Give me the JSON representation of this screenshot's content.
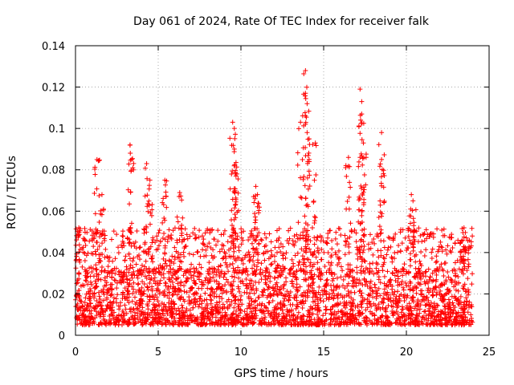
{
  "chart_data": {
    "type": "scatter",
    "title": "Day 061 of 2024, Rate Of TEC Index for receiver falk",
    "xlabel": "GPS time / hours",
    "ylabel": "ROTI / TECUs",
    "xlim": [
      0,
      25
    ],
    "ylim": [
      0,
      0.14
    ],
    "xticks": [
      0,
      5,
      10,
      15,
      20,
      25
    ],
    "xtick_labels": [
      "0",
      "5",
      "10",
      "15",
      "20",
      "25"
    ],
    "yticks": [
      0,
      0.02,
      0.04,
      0.06,
      0.08,
      0.1,
      0.12,
      0.14
    ],
    "ytick_labels": [
      "0",
      "0.02",
      "0.04",
      "0.06",
      "0.08",
      "0.1",
      "0.12",
      "0.14"
    ],
    "grid": true,
    "marker": "+",
    "color": "#ff0000",
    "x_data_range": [
      0,
      24
    ],
    "baseline_band": [
      0.005,
      0.03
    ],
    "notable_points": [
      {
        "x": 0.2,
        "y": 0.052
      },
      {
        "x": 1.3,
        "y": 0.085
      },
      {
        "x": 1.6,
        "y": 0.068
      },
      {
        "x": 3.3,
        "y": 0.092
      },
      {
        "x": 3.4,
        "y": 0.085
      },
      {
        "x": 4.3,
        "y": 0.083
      },
      {
        "x": 4.5,
        "y": 0.075
      },
      {
        "x": 5.4,
        "y": 0.075
      },
      {
        "x": 6.3,
        "y": 0.069
      },
      {
        "x": 9.5,
        "y": 0.103
      },
      {
        "x": 9.6,
        "y": 0.1
      },
      {
        "x": 9.6,
        "y": 0.09
      },
      {
        "x": 9.7,
        "y": 0.077
      },
      {
        "x": 10.9,
        "y": 0.072
      },
      {
        "x": 11.0,
        "y": 0.068
      },
      {
        "x": 13.6,
        "y": 0.103
      },
      {
        "x": 13.9,
        "y": 0.128
      },
      {
        "x": 13.9,
        "y": 0.117
      },
      {
        "x": 14.0,
        "y": 0.112
      },
      {
        "x": 14.0,
        "y": 0.098
      },
      {
        "x": 14.5,
        "y": 0.093
      },
      {
        "x": 16.5,
        "y": 0.086
      },
      {
        "x": 17.2,
        "y": 0.119
      },
      {
        "x": 17.3,
        "y": 0.113
      },
      {
        "x": 17.3,
        "y": 0.107
      },
      {
        "x": 17.4,
        "y": 0.093
      },
      {
        "x": 18.5,
        "y": 0.098
      },
      {
        "x": 18.5,
        "y": 0.085
      },
      {
        "x": 20.3,
        "y": 0.068
      },
      {
        "x": 20.4,
        "y": 0.065
      },
      {
        "x": 23.4,
        "y": 0.046
      }
    ]
  }
}
